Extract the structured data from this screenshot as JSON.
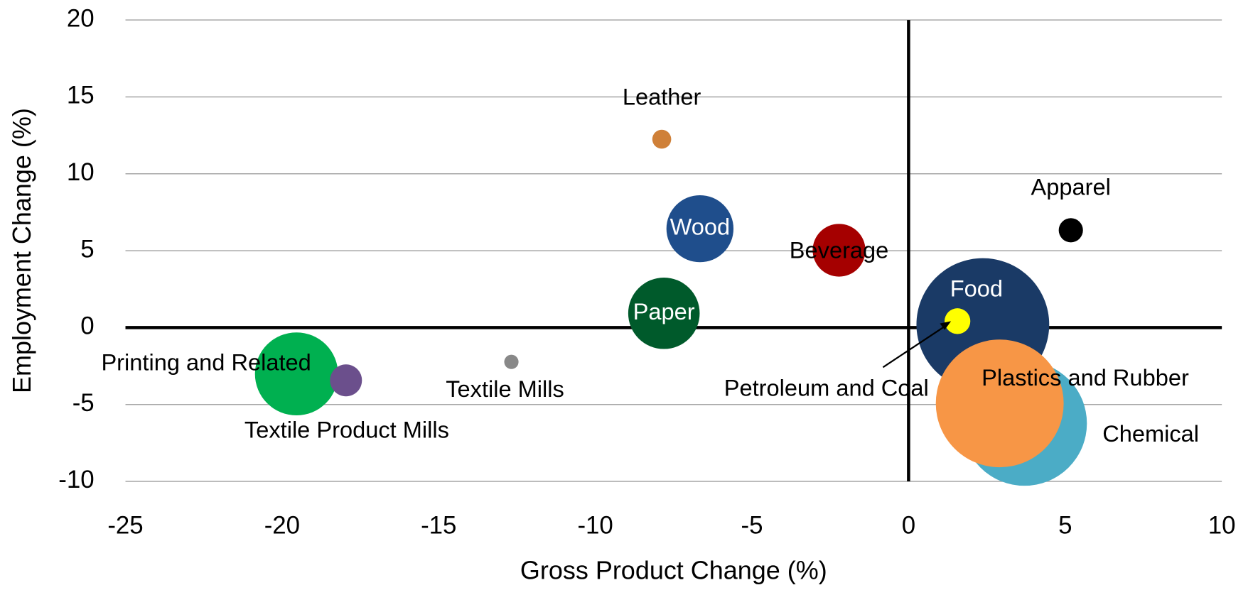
{
  "chart_data": {
    "type": "scatter",
    "xlabel": "Gross Product Change (%)",
    "ylabel": "Employment Change (%)",
    "xlim": [
      -25,
      10
    ],
    "xticks": [
      -25,
      -20,
      -15,
      -10,
      -5,
      0,
      5,
      10
    ],
    "ylim": [
      -10,
      20
    ],
    "yticks": [
      -10,
      -5,
      0,
      5,
      10,
      15,
      20
    ],
    "grid": true,
    "series": [
      {
        "name": "Leather",
        "color": "#cf8038",
        "x": [
          -7.88
        ],
        "values": [
          12.25
        ],
        "sizes": [
          1.4
        ]
      },
      {
        "name": "Wood",
        "color": "#1f4e8c",
        "x": [
          -6.66
        ],
        "values": [
          6.43
        ],
        "sizes": [
          17.6
        ]
      },
      {
        "name": "Beverage",
        "color": "#a50000",
        "x": [
          -2.22
        ],
        "values": [
          5.03
        ],
        "sizes": [
          10.9
        ]
      },
      {
        "name": "Apparel",
        "color": "#000000",
        "x": [
          5.18
        ],
        "values": [
          6.33
        ],
        "sizes": [
          2.3
        ]
      },
      {
        "name": "Paper",
        "color": "#005a2b",
        "x": [
          -7.81
        ],
        "values": [
          0.93
        ],
        "sizes": [
          20
        ]
      },
      {
        "name": "Food",
        "color": "#1a3a66",
        "x": [
          2.37
        ],
        "values": [
          0.2
        ],
        "sizes": [
          69
        ]
      },
      {
        "name": "Petroleum and Coal",
        "color": "#ffff00",
        "x": [
          1.56
        ],
        "values": [
          0.42
        ],
        "sizes": [
          2.6
        ]
      },
      {
        "name": "Chemical",
        "color": "#4bacc6",
        "x": [
          3.7
        ],
        "values": [
          -6.23
        ],
        "sizes": [
          61
        ]
      },
      {
        "name": "Plastics and Rubber",
        "color": "#f79646",
        "x": [
          2.91
        ],
        "values": [
          -4.93
        ],
        "sizes": [
          64
        ]
      },
      {
        "name": "Textile Mills",
        "color": "#888888",
        "x": [
          -12.68
        ],
        "values": [
          -2.23
        ],
        "sizes": [
          0.8
        ]
      },
      {
        "name": "Printing and Related",
        "color": "#00b050",
        "x": [
          -19.54
        ],
        "values": [
          -3.01
        ],
        "sizes": [
          27
        ]
      },
      {
        "name": "Textile Product Mills",
        "color": "#6b4f8c",
        "x": [
          -17.96
        ],
        "values": [
          -3.43
        ],
        "sizes": [
          4
        ]
      }
    ]
  }
}
